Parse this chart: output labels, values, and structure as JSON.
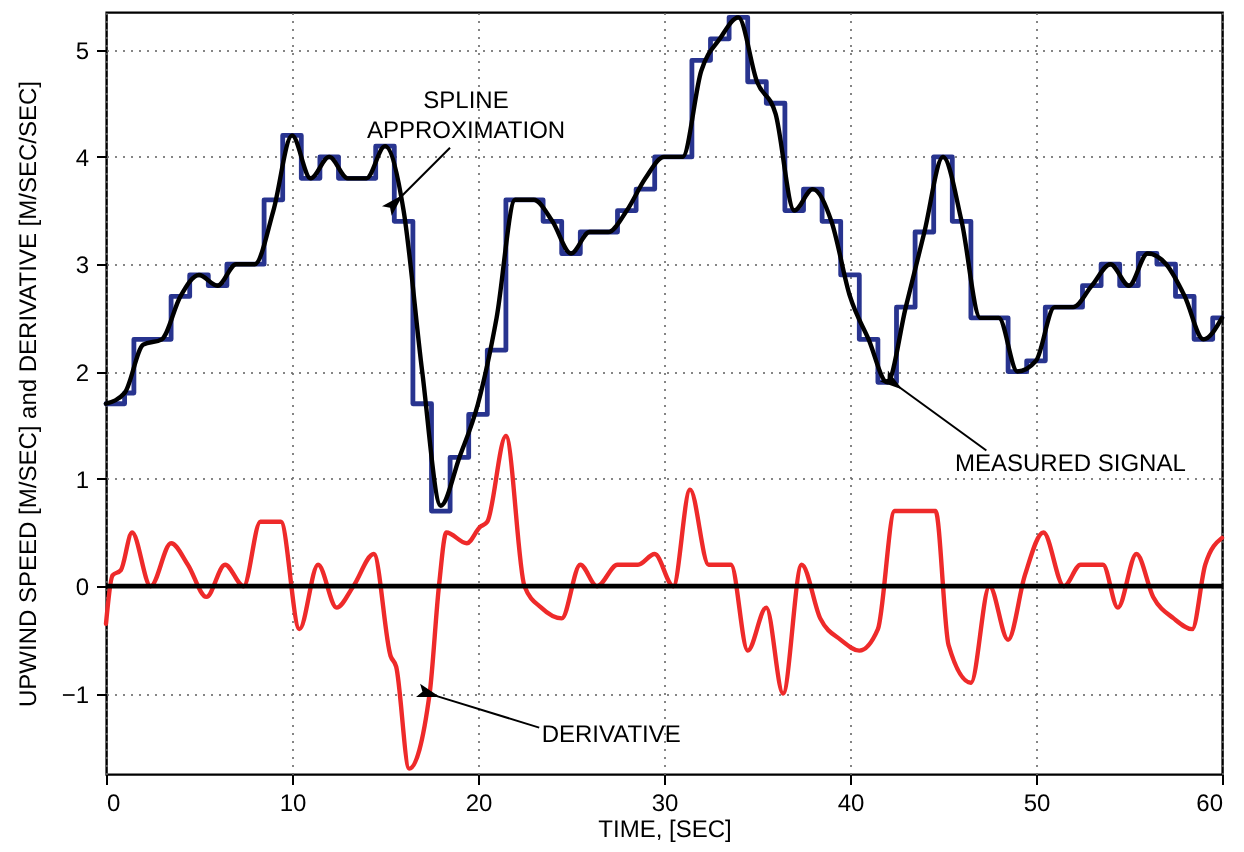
{
  "chart_data": {
    "type": "line",
    "xlabel": "TIME, [SEC]",
    "ylabel": "UPWIND SPEED [M/SEC] and DERIVATIVE [M/SEC/SEC]",
    "xlim": [
      0,
      60
    ],
    "xticks": [
      0,
      10,
      20,
      30,
      40,
      50,
      60
    ],
    "ylim": [
      -1.75,
      5.35
    ],
    "yticks": [
      -1,
      0,
      1,
      2,
      3,
      4,
      5
    ],
    "grid": true,
    "marker": "none",
    "line_style": "solid",
    "series": [
      {
        "type": "step",
        "color": "#28348f",
        "x": [
          0,
          1,
          1.5,
          3.5,
          4.5,
          5.5,
          6.5,
          8.5,
          9.5,
          10.5,
          11.5,
          12.5,
          14.5,
          15.5,
          16.5,
          17.5,
          18.5,
          19.5,
          20.5,
          21.5,
          23.5,
          24.5,
          25.5,
          27.5,
          28.5,
          29.5,
          31.5,
          32.5,
          33.5,
          34.5,
          35.5,
          36.5,
          37.5,
          38.5,
          39.5,
          40.5,
          41.5,
          42.5,
          43.5,
          44.5,
          45.5,
          46.5,
          48.5,
          49.5,
          50.5,
          52.5,
          53.5,
          54.5,
          55.5,
          56.5,
          57.5,
          58.5,
          59.5,
          60
        ],
        "values": [
          1.7,
          1.8,
          2.3,
          2.7,
          2.9,
          2.8,
          3.0,
          3.6,
          4.2,
          3.8,
          4.0,
          3.8,
          4.1,
          3.4,
          1.7,
          0.7,
          1.2,
          1.6,
          2.2,
          3.6,
          3.4,
          3.1,
          3.3,
          3.5,
          3.7,
          4.0,
          4.9,
          5.1,
          5.3,
          4.7,
          4.5,
          3.5,
          3.7,
          3.4,
          2.9,
          2.3,
          1.9,
          2.6,
          3.3,
          4.0,
          3.4,
          2.5,
          2.0,
          2.1,
          2.6,
          2.8,
          3.0,
          2.8,
          3.1,
          3.0,
          2.7,
          2.3,
          2.5,
          2.5
        ]
      },
      {
        "type": "line",
        "color": "#000000",
        "x": [
          0,
          1,
          2,
          3,
          4,
          5,
          6,
          7,
          8,
          9,
          10,
          11,
          12,
          13,
          14,
          15,
          16,
          17,
          18,
          19,
          20,
          21,
          22,
          23,
          24,
          25,
          26,
          27,
          28,
          29,
          30,
          31,
          32,
          33,
          34,
          35,
          36,
          37,
          38,
          39,
          40,
          41,
          42,
          43,
          44,
          45,
          46,
          47,
          48,
          49,
          50,
          51,
          52,
          53,
          54,
          55,
          56,
          57,
          58,
          59,
          60
        ],
        "values": [
          1.7,
          1.8,
          2.25,
          2.3,
          2.7,
          2.9,
          2.8,
          3.0,
          3.0,
          3.5,
          4.2,
          3.8,
          4.0,
          3.8,
          3.8,
          4.1,
          3.5,
          2.0,
          0.75,
          1.2,
          1.7,
          2.5,
          3.6,
          3.6,
          3.4,
          3.1,
          3.3,
          3.3,
          3.5,
          3.8,
          4.0,
          4.0,
          4.8,
          5.1,
          5.3,
          4.7,
          4.4,
          3.5,
          3.7,
          3.4,
          2.7,
          2.3,
          1.9,
          2.6,
          3.3,
          4.0,
          3.4,
          2.5,
          2.5,
          2.0,
          2.1,
          2.6,
          2.6,
          2.8,
          3.0,
          2.8,
          3.1,
          3.0,
          2.7,
          2.3,
          2.5
        ]
      },
      {
        "type": "line",
        "color": "#ee2a2a",
        "x": [
          0,
          0.35,
          0.8,
          1.4,
          2.4,
          3.5,
          4.4,
          5.4,
          6.4,
          7.4,
          8.3,
          9.4,
          10.4,
          11.4,
          12.4,
          13.3,
          14.4,
          15.3,
          15.6,
          16.3,
          17.4,
          17.9,
          18.3,
          19.4,
          20.1,
          20.5,
          21.5,
          22.5,
          23.4,
          24.5,
          25.5,
          26.4,
          27.5,
          28.6,
          29.5,
          30.5,
          31.4,
          32.4,
          33.6,
          34.5,
          35.5,
          36.4,
          37.4,
          38.4,
          39.5,
          40.5,
          41.5,
          42.4,
          44.6,
          45.3,
          46.5,
          47.5,
          48.5,
          49.4,
          50.4,
          51.5,
          52.4,
          53.6,
          54.4,
          55.4,
          56.3,
          57.4,
          58.4,
          59.1,
          60
        ],
        "values": [
          -0.35,
          0.1,
          0.15,
          0.5,
          0.0,
          0.4,
          0.2,
          -0.1,
          0.2,
          0.0,
          0.6,
          0.6,
          -0.4,
          0.2,
          -0.2,
          0.0,
          0.3,
          -0.65,
          -0.75,
          -1.7,
          -1.0,
          0.0,
          0.5,
          0.4,
          0.55,
          0.6,
          1.4,
          0.0,
          -0.2,
          -0.3,
          0.2,
          0.0,
          0.2,
          0.2,
          0.3,
          0.0,
          0.9,
          0.2,
          0.2,
          -0.6,
          -0.2,
          -1.0,
          0.2,
          -0.3,
          -0.5,
          -0.6,
          -0.4,
          0.7,
          0.7,
          -0.55,
          -0.9,
          0.0,
          -0.5,
          0.1,
          0.5,
          0.0,
          0.2,
          0.2,
          -0.2,
          0.3,
          -0.1,
          -0.3,
          -0.4,
          0.2,
          0.45
        ]
      }
    ],
    "ref_lines": [
      {
        "axis": "y",
        "value": 0,
        "color": "#000000",
        "line_style": "solid"
      }
    ],
    "annotations": [
      {
        "text": "SPLINE\nAPPROXIMATION",
        "x": 15.7,
        "y": 3.6
      },
      {
        "text": "MEASURED SIGNAL",
        "x": 42.6,
        "y": 1.86
      },
      {
        "text": "DERIVATIVE",
        "x": 17.7,
        "y": -1.02
      }
    ]
  }
}
